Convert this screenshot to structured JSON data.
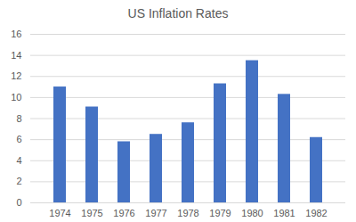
{
  "chart_data": {
    "type": "bar",
    "title": "US Inflation Rates",
    "categories": [
      "1974",
      "1975",
      "1976",
      "1977",
      "1978",
      "1979",
      "1980",
      "1981",
      "1982"
    ],
    "values": [
      11.0,
      9.1,
      5.8,
      6.5,
      7.6,
      11.3,
      13.5,
      10.3,
      6.2
    ],
    "color": "#4472c4",
    "ylim": [
      0,
      16
    ],
    "yticks": [
      0,
      2,
      4,
      6,
      8,
      10,
      12,
      14,
      16
    ],
    "grid": true
  }
}
